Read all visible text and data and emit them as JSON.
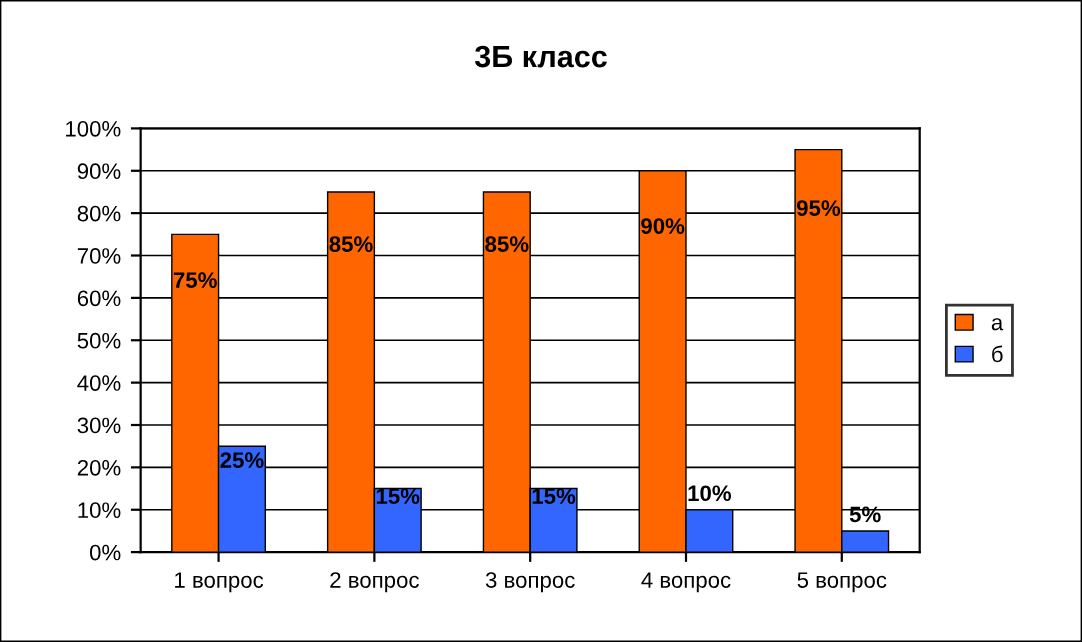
{
  "chart_data": {
    "type": "bar",
    "title": "3Б класс",
    "categories": [
      "1 вопрос",
      "2 вопрос",
      "3 вопрос",
      "4 вопрос",
      "5 вопрос"
    ],
    "series": [
      {
        "name": "а",
        "color": "#ff6600",
        "values": [
          75,
          85,
          85,
          90,
          95
        ],
        "value_labels": [
          "75%",
          "85%",
          "85%",
          "90%",
          "95%"
        ]
      },
      {
        "name": "б",
        "color": "#3366ff",
        "values": [
          25,
          15,
          15,
          10,
          5
        ],
        "value_labels": [
          "25%",
          "15%",
          "15%",
          "10%",
          "5%"
        ]
      }
    ],
    "ylim": [
      0,
      100
    ],
    "yticks": [
      {
        "value": 0,
        "label": "0%"
      },
      {
        "value": 10,
        "label": "10%"
      },
      {
        "value": 20,
        "label": "20%"
      },
      {
        "value": 30,
        "label": "30%"
      },
      {
        "value": 40,
        "label": "40%"
      },
      {
        "value": 50,
        "label": "50%"
      },
      {
        "value": 60,
        "label": "60%"
      },
      {
        "value": 70,
        "label": "70%"
      },
      {
        "value": 80,
        "label": "80%"
      },
      {
        "value": 90,
        "label": "90%"
      },
      {
        "value": 100,
        "label": "100%"
      }
    ],
    "grid": "y",
    "legend": "right"
  }
}
